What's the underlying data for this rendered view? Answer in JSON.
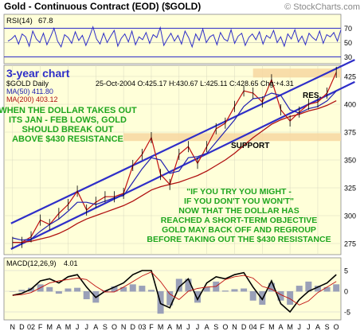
{
  "header": {
    "title": "Gold - Continuous Contract (EOD) ($GOLD)",
    "copyright": "© StockCharts.com"
  },
  "rsi_panel": {
    "label": "RSI(14)",
    "value": "67.8",
    "levels": [
      "70",
      "50",
      "30"
    ],
    "series": [
      52,
      55,
      60,
      48,
      62,
      58,
      45,
      66,
      55,
      50,
      63,
      47,
      58,
      70,
      52,
      44,
      61,
      57,
      49,
      65,
      53,
      60,
      46,
      58,
      72,
      55,
      48,
      63,
      50,
      59,
      67,
      45,
      56,
      62,
      51,
      66,
      47,
      58,
      54,
      64,
      49,
      61,
      57,
      71,
      46,
      55,
      63,
      52,
      60,
      48,
      66,
      57,
      44,
      62,
      53,
      69,
      50,
      58,
      61,
      47,
      64,
      55,
      52,
      68,
      49,
      59,
      63,
      46,
      57,
      62,
      54,
      65,
      48,
      60,
      56,
      67,
      50,
      58,
      45,
      62,
      55,
      68,
      51,
      59,
      47,
      63,
      57,
      53,
      66,
      49,
      61,
      58,
      64,
      52,
      67.8
    ],
    "color": "#2e2ec8"
  },
  "annotations": {
    "period_label": "3-year chart",
    "symbol_line": "$GOLD Daily",
    "ohlc": "25-Oct-2004 O:425.17 H:430.67 L:425.11 C:428.65 Chg:+4.31",
    "ma50": "MA(50) 411.80",
    "ma200": "MA(200) 403.12",
    "note1": [
      "WHEN THE DOLLAR TAKES OUT",
      "ITS JAN - FEB LOWS, GOLD",
      "SHOULD BREAK OUT",
      "ABOVE $430 RESISTANCE"
    ],
    "note2": [
      "\"IF YOU TRY YOU MIGHT -",
      "IF YOU DON'T YOU WON'T\"",
      "NOW THAT THE DOLLAR HAS",
      "REACHED A SHORT-TERM OBJECTIVE",
      "GOLD MAY BACK OFF AND REGROUP",
      "BEFORE TAKING OUT THE $430 RESISTANCE"
    ],
    "support": "SUPPORT",
    "resistance": "RES.",
    "note_color": "#1fa61f"
  },
  "price_panel": {
    "price_labels": [
      "425",
      "400",
      "375",
      "350",
      "325",
      "300",
      "275"
    ],
    "price_color": "#c01010",
    "ma50_color": "#2020b0",
    "ma200_color": "#b01010",
    "channel_color": "#2e2ec8",
    "zone_color": "#f7d7a0"
  },
  "macd_panel": {
    "label": "MACD(12,26,9)",
    "value": "4.01",
    "levels": [
      "5",
      "0",
      "-5"
    ]
  },
  "x_axis": {
    "months": [
      "N",
      "D",
      "02",
      "F",
      "M",
      "A",
      "M",
      "J",
      "J",
      "A",
      "S",
      "O",
      "N",
      "D",
      "03",
      "F",
      "M",
      "A",
      "M",
      "J",
      "J",
      "A",
      "S",
      "O",
      "N",
      "D",
      "04",
      "F",
      "M",
      "A",
      "M",
      "J",
      "J",
      "A",
      "S",
      "O"
    ]
  },
  "chart_data": {
    "type": "line",
    "title": "Gold - Continuous Contract (EOD) ($GOLD)",
    "xlabel": "",
    "ylabel": "",
    "ylim": [
      265,
      435
    ],
    "x": [
      "2001-11",
      "2001-12",
      "2002-01",
      "2002-02",
      "2002-03",
      "2002-04",
      "2002-05",
      "2002-06",
      "2002-07",
      "2002-08",
      "2002-09",
      "2002-10",
      "2002-11",
      "2002-12",
      "2003-01",
      "2003-02",
      "2003-03",
      "2003-04",
      "2003-05",
      "2003-06",
      "2003-07",
      "2003-08",
      "2003-09",
      "2003-10",
      "2003-11",
      "2003-12",
      "2004-01",
      "2004-02",
      "2004-03",
      "2004-04",
      "2004-05",
      "2004-06",
      "2004-07",
      "2004-08",
      "2004-09",
      "2004-10"
    ],
    "series": [
      {
        "name": "$GOLD Daily",
        "values": [
          276,
          276,
          281,
          296,
          292,
          302,
          310,
          322,
          305,
          312,
          317,
          317,
          320,
          345,
          355,
          370,
          337,
          328,
          355,
          362,
          347,
          362,
          378,
          383,
          398,
          412,
          410,
          402,
          422,
          395,
          385,
          393,
          400,
          402,
          410,
          428.65
        ]
      },
      {
        "name": "MA(50)",
        "values": [
          280,
          278,
          279,
          286,
          292,
          297,
          304,
          312,
          312,
          310,
          313,
          316,
          318,
          330,
          342,
          352,
          350,
          338,
          340,
          352,
          353,
          356,
          366,
          376,
          386,
          398,
          405,
          406,
          410,
          408,
          395,
          392,
          396,
          398,
          403,
          411.8
        ]
      },
      {
        "name": "MA(200)",
        "values": [
          276,
          276,
          277,
          279,
          281,
          284,
          288,
          293,
          297,
          300,
          303,
          306,
          309,
          313,
          318,
          323,
          326,
          328,
          330,
          333,
          336,
          340,
          345,
          350,
          356,
          363,
          370,
          376,
          382,
          386,
          389,
          391,
          394,
          396,
          399,
          403.12
        ]
      }
    ],
    "channel": {
      "upper": [
        [
          0,
          293
        ],
        [
          35,
          432
        ]
      ],
      "lower": [
        [
          0,
          270
        ],
        [
          35,
          412
        ]
      ]
    },
    "support_zone": [
      367,
      374
    ],
    "resistance_zone": [
      424,
      432
    ],
    "grid": true,
    "macd_values": [
      -1,
      -0.5,
      0.5,
      2.5,
      3,
      2,
      3.5,
      4,
      1,
      -1.5,
      0,
      1,
      2,
      4,
      5,
      5,
      -3,
      -4,
      1,
      3,
      -2,
      2,
      3.5,
      3,
      4,
      4.5,
      1,
      -2,
      2.5,
      -3,
      -5,
      -2,
      0,
      1,
      2,
      4.01
    ]
  }
}
